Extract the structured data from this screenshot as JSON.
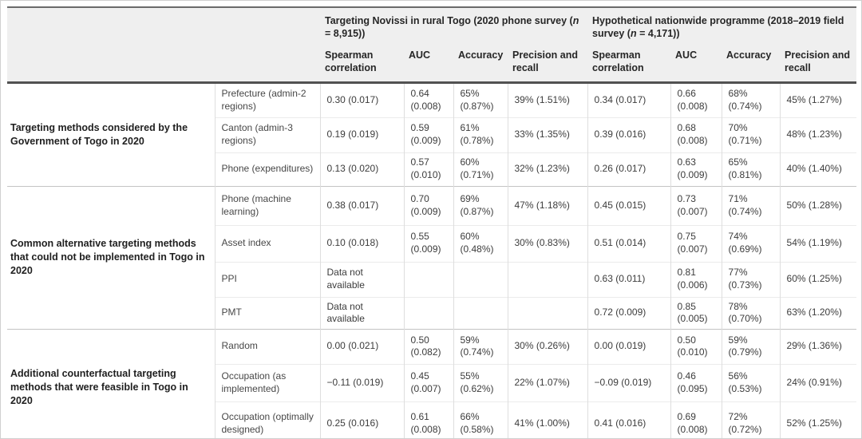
{
  "table": {
    "header": {
      "group1": {
        "pre": "Targeting Novissi in rural Togo (2020 phone survey (",
        "n": "n",
        "post": " = 8,915))"
      },
      "group2": {
        "pre": "Hypothetical nationwide programme (2018–2019 field survey (",
        "n": "n",
        "post": " = 4,171))"
      },
      "stat_columns": [
        "Spearman correlation",
        "AUC",
        "Accuracy",
        "Precision and recall"
      ]
    },
    "groups": [
      {
        "label": "Targeting methods considered by the Government of Togo in 2020",
        "rows": [
          {
            "method": "Prefecture (admin-2 regions)",
            "cells": [
              "0.30 (0.017)",
              "0.64 (0.008)",
              "65% (0.87%)",
              "39% (1.51%)",
              "0.34 (0.017)",
              "0.66 (0.008)",
              "68% (0.74%)",
              "45% (1.27%)"
            ]
          },
          {
            "method": "Canton (admin-3 regions)",
            "cells": [
              "0.19 (0.019)",
              "0.59 (0.009)",
              "61% (0.78%)",
              "33% (1.35%)",
              "0.39 (0.016)",
              "0.68 (0.008)",
              "70% (0.71%)",
              "48% (1.23%)"
            ]
          },
          {
            "method": "Phone (expenditures)",
            "cells": [
              "0.13 (0.020)",
              "0.57 (0.010)",
              "60% (0.71%)",
              "32% (1.23%)",
              "0.26 (0.017)",
              "0.63 (0.009)",
              "65% (0.81%)",
              "40% (1.40%)"
            ]
          }
        ]
      },
      {
        "label": "Common alternative targeting methods that could not be implemented in Togo in 2020",
        "rows": [
          {
            "method": "Phone (machine learning)",
            "cells": [
              "0.38 (0.017)",
              "0.70 (0.009)",
              "69% (0.87%)",
              "47% (1.18%)",
              "0.45 (0.015)",
              "0.73 (0.007)",
              "71% (0.74%)",
              "50% (1.28%)"
            ]
          },
          {
            "method": "Asset index",
            "cells": [
              "0.10 (0.018)",
              "0.55 (0.009)",
              "60% (0.48%)",
              "30% (0.83%)",
              "0.51 (0.014)",
              "0.75 (0.007)",
              "74% (0.69%)",
              "54% (1.19%)"
            ]
          },
          {
            "method": "PPI",
            "cells": [
              "Data not available",
              "",
              "",
              "",
              "0.63 (0.011)",
              "0.81 (0.006)",
              "77% (0.73%)",
              "60% (1.25%)"
            ]
          },
          {
            "method": "PMT",
            "cells": [
              "Data not available",
              "",
              "",
              "",
              "0.72 (0.009)",
              "0.85 (0.005)",
              "78% (0.70%)",
              "63% (1.20%)"
            ]
          }
        ]
      },
      {
        "label": "Additional counterfactual targeting methods that were feasible in Togo in 2020",
        "rows": [
          {
            "method": "Random",
            "cells": [
              "0.00 (0.021)",
              "0.50 (0.082)",
              "59% (0.74%)",
              "30% (0.26%)",
              "0.00 (0.019)",
              "0.50 (0.010)",
              "59% (0.79%)",
              "29% (1.36%)"
            ]
          },
          {
            "method": "Occupation (as implemented)",
            "cells": [
              "−0.11 (0.019)",
              "0.45 (0.007)",
              "55% (0.62%)",
              "22% (1.07%)",
              "−0.09 (0.019)",
              "0.46 (0.095)",
              "56% (0.53%)",
              "24% (0.91%)"
            ]
          },
          {
            "method": "Occupation (optimally designed)",
            "cells": [
              "0.25 (0.016)",
              "0.61 (0.008)",
              "66% (0.58%)",
              "41% (1.00%)",
              "0.41 (0.016)",
              "0.69 (0.008)",
              "72% (0.72%)",
              "52% (1.25%)"
            ]
          }
        ]
      }
    ],
    "colors": {
      "header_bg": "#efefef",
      "rule_dark": "#515151",
      "rule_group": "#c4c4c4",
      "rule_column": "#dedede",
      "text": "#3c3c3c"
    }
  }
}
